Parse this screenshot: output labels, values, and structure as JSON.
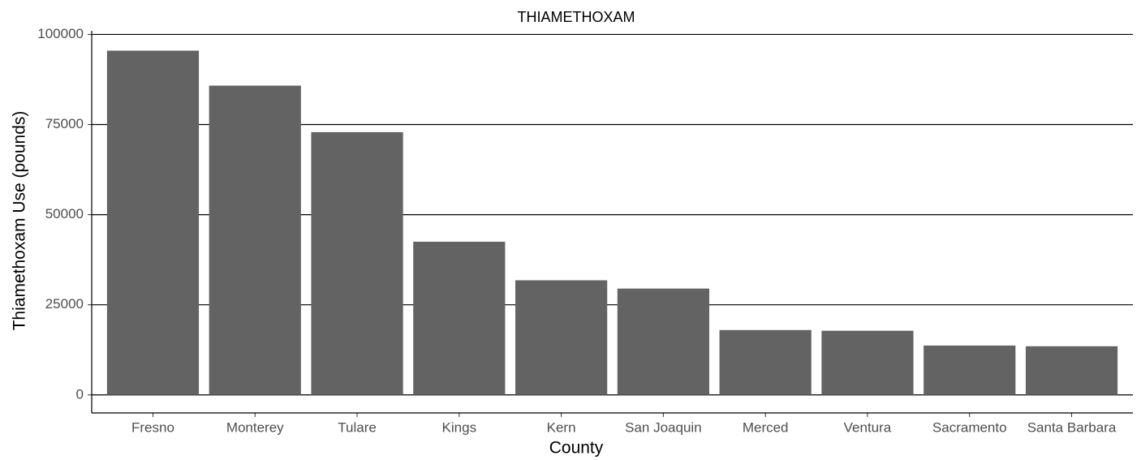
{
  "chart_data": {
    "type": "bar",
    "title": "THIAMETHOXAM",
    "x_label": "County",
    "y_label": "Thiamethoxam Use (pounds)",
    "categories": [
      "Fresno",
      "Monterey",
      "Tulare",
      "Kings",
      "Kern",
      "San Joaquin",
      "Merced",
      "Ventura",
      "Sacramento",
      "Santa Barbara"
    ],
    "values": [
      95500,
      85800,
      72900,
      42500,
      31800,
      29500,
      18000,
      17800,
      13700,
      13500
    ],
    "color": "#636363",
    "ylim": [
      -5000,
      101000
    ],
    "yticks": [
      0,
      25000,
      50000,
      75000,
      100000
    ],
    "grid": true
  }
}
